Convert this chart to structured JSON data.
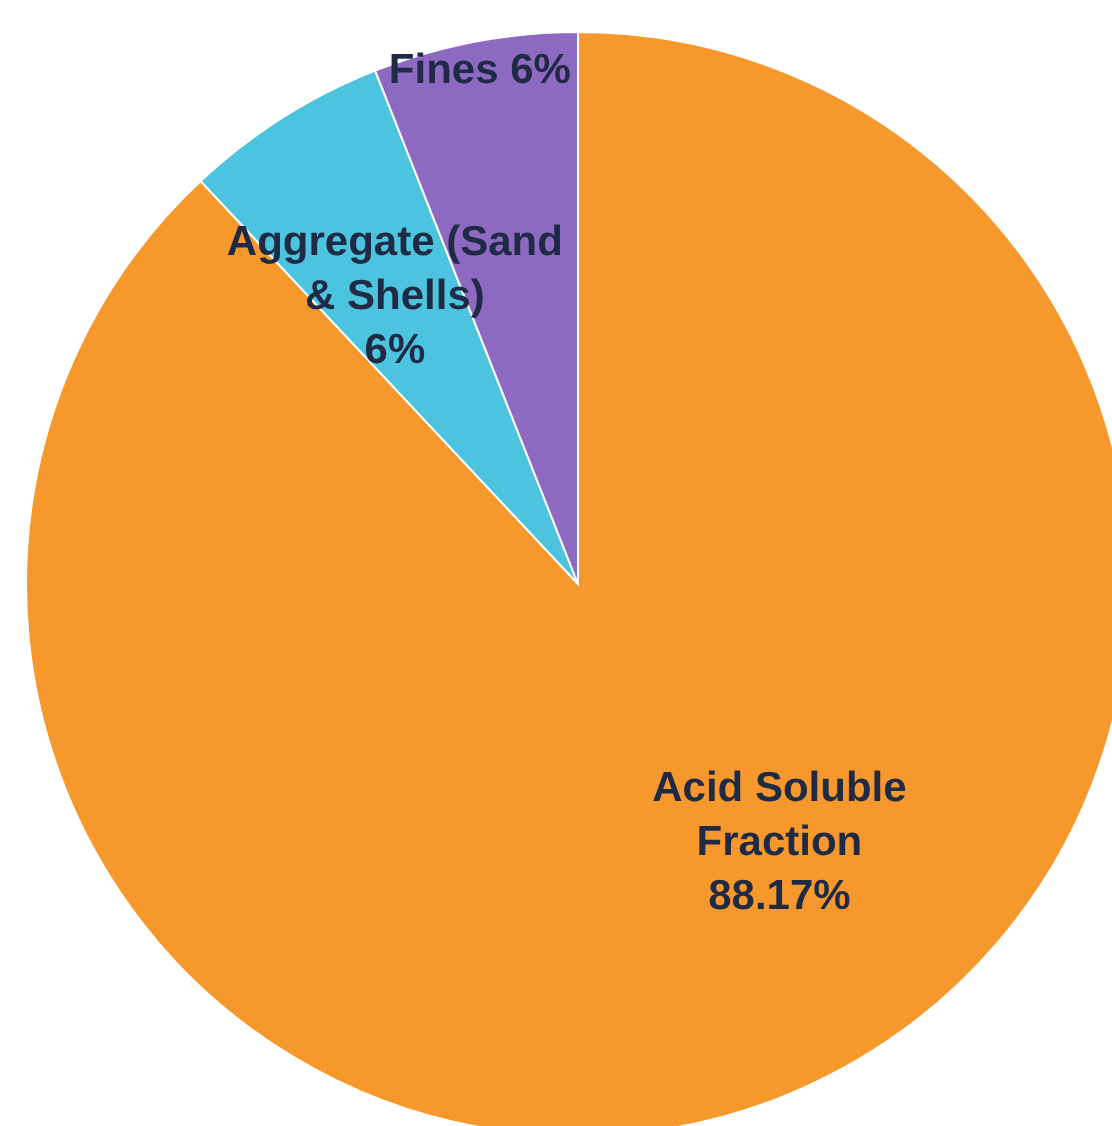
{
  "chart_data": {
    "type": "pie",
    "categories": [
      "Acid Soluble Fraction",
      "Aggregate (Sand & Shells)",
      "Fines"
    ],
    "values": [
      88.17,
      6,
      6
    ],
    "colors": [
      "#f7982d",
      "#4cc3df",
      "#8e69c1"
    ],
    "value_labels": [
      "88.17%",
      "6%",
      "6%"
    ],
    "legend": false
  }
}
